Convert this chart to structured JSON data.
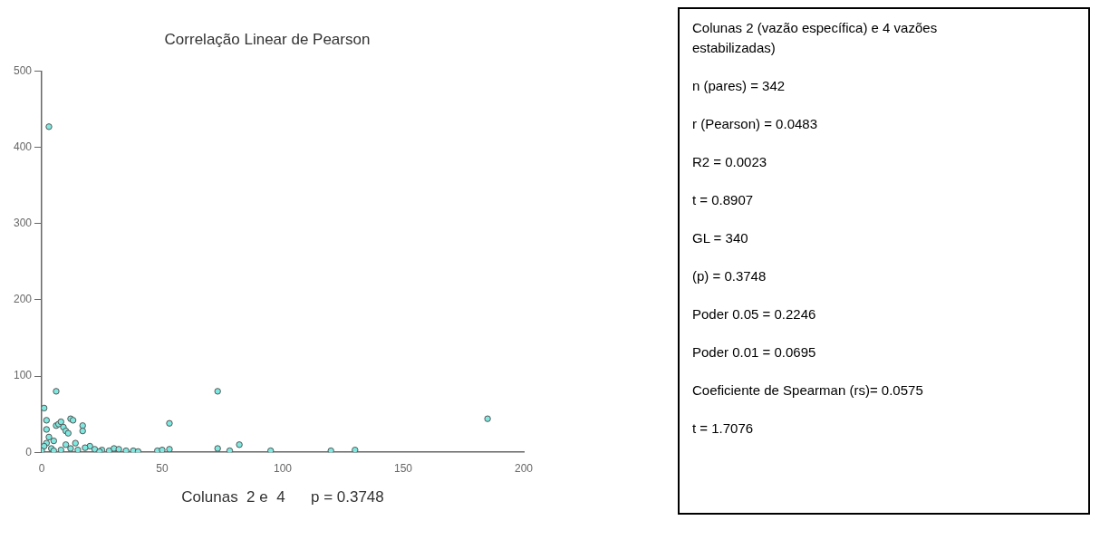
{
  "chart_data": [
    {
      "type": "scatter",
      "title": "Correlação Linear de Pearson",
      "xlabel": "Colunas  2 e  4      p = 0.3748",
      "xlim": [
        0,
        200
      ],
      "xticks": [
        0,
        50,
        100,
        150,
        200
      ],
      "ylim": [
        0,
        500
      ],
      "yticks": [
        0,
        100,
        200,
        300,
        400,
        500
      ],
      "grid": false,
      "legend": false,
      "marker": "circle",
      "series": [
        {
          "color": "#7fe8e0",
          "x": [
            3,
            6,
            1,
            2,
            2,
            3,
            2,
            1,
            4,
            5,
            6,
            7,
            8,
            9,
            10,
            11,
            12,
            13,
            17,
            17,
            10,
            12,
            14,
            15,
            20,
            22,
            25,
            28,
            30,
            32,
            35,
            38,
            40,
            48,
            50,
            53,
            53,
            73,
            73,
            78,
            82,
            95,
            120,
            130,
            185,
            0,
            5,
            8,
            18,
            24
          ],
          "values": [
            427,
            80,
            58,
            42,
            30,
            20,
            12,
            8,
            5,
            15,
            35,
            37,
            40,
            33,
            28,
            25,
            44,
            42,
            35,
            28,
            10,
            5,
            12,
            3,
            8,
            4,
            3,
            2,
            5,
            4,
            2,
            2,
            1,
            2,
            3,
            38,
            4,
            80,
            5,
            2,
            10,
            2,
            2,
            3,
            44,
            2,
            2,
            3,
            6,
            1
          ]
        }
      ]
    },
    {
      "type": "other",
      "annotations": [
        "Colunas 2 (vazão específica) e 4 vazões estabilizadas)",
        "n (pares) = 342",
        "r (Pearson) = 0.0483",
        "R2 = 0.0023",
        "t = 0.8907",
        "GL = 340",
        "(p) = 0.3748",
        "Poder 0.05 = 0.2246",
        "Poder 0.01 = 0.0695",
        "Coeficiente de Spearman (rs)= 0.0575",
        "t = 1.7076"
      ]
    }
  ]
}
